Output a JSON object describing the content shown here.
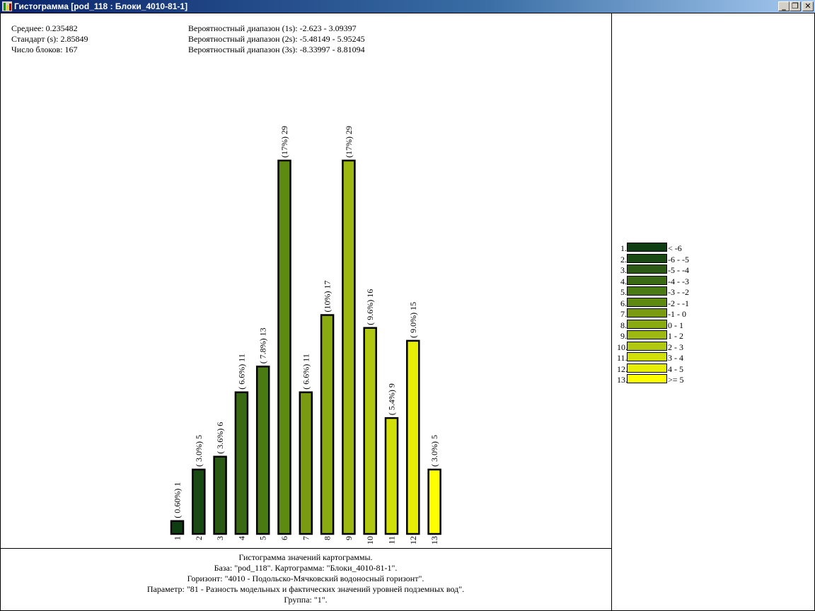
{
  "window": {
    "title": "Гистограмма [pod_118 : Блоки_4010-81-1]",
    "minimize_glyph": "_",
    "restore_glyph": "❐",
    "close_glyph": "✕"
  },
  "stats": {
    "mean": "Среднее: 0.235482",
    "std": "Стандарт (s): 2.85849",
    "count": "Число блоков: 167",
    "range1": "Вероятностный диапазон (1s): -2.623 - 3.09397",
    "range2": "Вероятностный диапазон (2s): -5.48149 - 5.95245",
    "range3": "Вероятностный диапазон (3s): -8.33997 - 8.81094"
  },
  "caption": {
    "line1": "Гистограмма значений картограммы.",
    "line2": "База: \"pod_118\". Картограмма: \"Блоки_4010-81-1\".",
    "line3": "Горизонт: \"4010 - Подольско-Мячковский водоносный горизонт\".",
    "line4": "Параметр: \"81 - Разность модельных и фактических значений уровней подземных вод\".",
    "line5": "Группа: \"1\"."
  },
  "chart_data": {
    "type": "bar",
    "categories": [
      "1",
      "2",
      "3",
      "4",
      "5",
      "6",
      "7",
      "8",
      "9",
      "10",
      "11",
      "12",
      "13"
    ],
    "values": [
      1,
      5,
      6,
      11,
      13,
      29,
      11,
      17,
      29,
      16,
      9,
      15,
      5
    ],
    "bar_labels": [
      "( 0.60%) 1",
      "( 3.0%) 5",
      "( 3.6%) 6",
      "( 6.6%) 11",
      "( 7.8%) 13",
      "(17%) 29",
      "( 6.6%) 11",
      "(10%) 17",
      "(17%) 29",
      "( 9.6%) 16",
      "( 5.4%) 9",
      "( 9.0%) 15",
      "( 3.0%) 5"
    ],
    "colors": [
      "#0f3d12",
      "#1a4a14",
      "#2a5a14",
      "#3a6a14",
      "#4a7a14",
      "#5e8a12",
      "#7a9a12",
      "#8aaa12",
      "#9eb812",
      "#b0c812",
      "#d2e00a",
      "#e6ee08",
      "#ffff00"
    ],
    "legend": [
      {
        "num": "1.",
        "label": "< -6"
      },
      {
        "num": "2.",
        "label": "-6 - -5"
      },
      {
        "num": "3.",
        "label": "-5 - -4"
      },
      {
        "num": "4.",
        "label": "-4 - -3"
      },
      {
        "num": "5.",
        "label": "-3 - -2"
      },
      {
        "num": "6.",
        "label": "-2 - -1"
      },
      {
        "num": "7.",
        "label": "-1 - 0"
      },
      {
        "num": "8.",
        "label": "0 - 1"
      },
      {
        "num": "9.",
        "label": "1 - 2"
      },
      {
        "num": "10.",
        "label": "2 - 3"
      },
      {
        "num": "11.",
        "label": "3 - 4"
      },
      {
        "num": "12.",
        "label": "4 - 5"
      },
      {
        "num": "13.",
        "label": ">= 5"
      }
    ],
    "legend_position": "right",
    "ylim": [
      0,
      29
    ],
    "grid": false
  }
}
